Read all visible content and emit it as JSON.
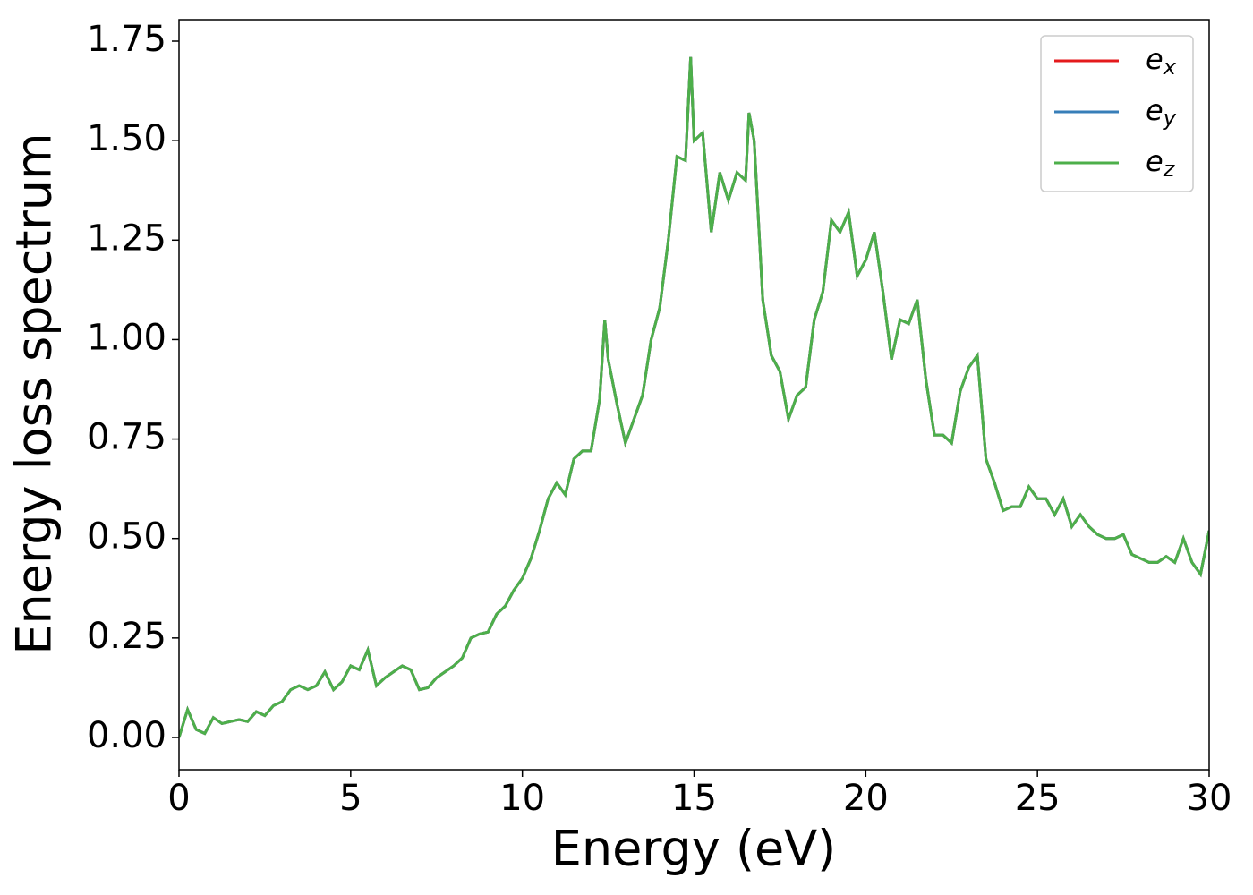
{
  "chart_data": {
    "type": "line",
    "xlabel": "Energy (eV)",
    "ylabel": "Energy loss spectrum",
    "x": [
      0,
      0.25,
      0.5,
      0.75,
      1,
      1.25,
      1.5,
      1.75,
      2,
      2.25,
      2.5,
      2.75,
      3,
      3.25,
      3.5,
      3.75,
      4,
      4.25,
      4.5,
      4.75,
      5,
      5.25,
      5.5,
      5.75,
      6,
      6.25,
      6.5,
      6.75,
      7,
      7.25,
      7.5,
      7.75,
      8,
      8.25,
      8.5,
      8.75,
      9,
      9.25,
      9.5,
      9.75,
      10,
      10.25,
      10.5,
      10.75,
      11,
      11.25,
      11.5,
      11.75,
      12,
      12.25,
      12.4,
      12.5,
      12.75,
      13,
      13.25,
      13.5,
      13.75,
      14,
      14.25,
      14.5,
      14.75,
      14.9,
      15,
      15.25,
      15.5,
      15.75,
      16,
      16.25,
      16.5,
      16.6,
      16.75,
      17,
      17.25,
      17.5,
      17.75,
      18,
      18.25,
      18.5,
      18.75,
      19,
      19.25,
      19.5,
      19.75,
      20,
      20.25,
      20.5,
      20.75,
      21,
      21.25,
      21.5,
      21.75,
      22,
      22.25,
      22.5,
      22.75,
      23,
      23.25,
      23.5,
      23.75,
      24,
      24.25,
      24.5,
      24.75,
      25,
      25.25,
      25.5,
      25.75,
      26,
      26.25,
      26.5,
      26.75,
      27,
      27.25,
      27.5,
      27.75,
      28,
      28.25,
      28.5,
      28.75,
      29,
      29.25,
      29.5,
      29.75,
      30
    ],
    "series": [
      {
        "name": "e_x",
        "color": "#e41a1c",
        "values": [
          0,
          0.07,
          0.02,
          0.01,
          0.05,
          0.035,
          0.04,
          0.045,
          0.04,
          0.065,
          0.055,
          0.08,
          0.09,
          0.12,
          0.13,
          0.12,
          0.13,
          0.165,
          0.12,
          0.14,
          0.18,
          0.17,
          0.22,
          0.13,
          0.15,
          0.165,
          0.18,
          0.17,
          0.12,
          0.125,
          0.15,
          0.165,
          0.18,
          0.2,
          0.25,
          0.26,
          0.265,
          0.31,
          0.33,
          0.37,
          0.4,
          0.45,
          0.52,
          0.6,
          0.64,
          0.61,
          0.7,
          0.72,
          0.72,
          0.85,
          1.05,
          0.95,
          0.84,
          0.74,
          0.8,
          0.86,
          1.0,
          1.08,
          1.25,
          1.46,
          1.45,
          1.71,
          1.5,
          1.52,
          1.27,
          1.42,
          1.35,
          1.42,
          1.4,
          1.57,
          1.5,
          1.1,
          0.96,
          0.92,
          0.8,
          0.86,
          0.88,
          1.05,
          1.12,
          1.3,
          1.27,
          1.32,
          1.16,
          1.2,
          1.27,
          1.12,
          0.95,
          1.05,
          1.04,
          1.1,
          0.9,
          0.76,
          0.76,
          0.74,
          0.87,
          0.93,
          0.96,
          0.7,
          0.64,
          0.57,
          0.58,
          0.58,
          0.63,
          0.6,
          0.6,
          0.56,
          0.6,
          0.53,
          0.56,
          0.53,
          0.51,
          0.5,
          0.5,
          0.51,
          0.46,
          0.45,
          0.44,
          0.44,
          0.455,
          0.44,
          0.5,
          0.44,
          0.41,
          0.52
        ]
      },
      {
        "name": "e_y",
        "color": "#377eb8",
        "values": [
          0,
          0.07,
          0.02,
          0.01,
          0.05,
          0.035,
          0.04,
          0.045,
          0.04,
          0.065,
          0.055,
          0.08,
          0.09,
          0.12,
          0.13,
          0.12,
          0.13,
          0.165,
          0.12,
          0.14,
          0.18,
          0.17,
          0.22,
          0.13,
          0.15,
          0.165,
          0.18,
          0.17,
          0.12,
          0.125,
          0.15,
          0.165,
          0.18,
          0.2,
          0.25,
          0.26,
          0.265,
          0.31,
          0.33,
          0.37,
          0.4,
          0.45,
          0.52,
          0.6,
          0.64,
          0.61,
          0.7,
          0.72,
          0.72,
          0.85,
          1.05,
          0.95,
          0.84,
          0.74,
          0.8,
          0.86,
          1.0,
          1.08,
          1.25,
          1.46,
          1.45,
          1.71,
          1.5,
          1.52,
          1.27,
          1.42,
          1.35,
          1.42,
          1.4,
          1.57,
          1.5,
          1.1,
          0.96,
          0.92,
          0.8,
          0.86,
          0.88,
          1.05,
          1.12,
          1.3,
          1.27,
          1.32,
          1.16,
          1.2,
          1.27,
          1.12,
          0.95,
          1.05,
          1.04,
          1.1,
          0.9,
          0.76,
          0.76,
          0.74,
          0.87,
          0.93,
          0.96,
          0.7,
          0.64,
          0.57,
          0.58,
          0.58,
          0.63,
          0.6,
          0.6,
          0.56,
          0.6,
          0.53,
          0.56,
          0.53,
          0.51,
          0.5,
          0.5,
          0.51,
          0.46,
          0.45,
          0.44,
          0.44,
          0.455,
          0.44,
          0.5,
          0.44,
          0.41,
          0.52
        ]
      },
      {
        "name": "e_z",
        "color": "#4daf4a",
        "values": [
          0,
          0.07,
          0.02,
          0.01,
          0.05,
          0.035,
          0.04,
          0.045,
          0.04,
          0.065,
          0.055,
          0.08,
          0.09,
          0.12,
          0.13,
          0.12,
          0.13,
          0.165,
          0.12,
          0.14,
          0.18,
          0.17,
          0.22,
          0.13,
          0.15,
          0.165,
          0.18,
          0.17,
          0.12,
          0.125,
          0.15,
          0.165,
          0.18,
          0.2,
          0.25,
          0.26,
          0.265,
          0.31,
          0.33,
          0.37,
          0.4,
          0.45,
          0.52,
          0.6,
          0.64,
          0.61,
          0.7,
          0.72,
          0.72,
          0.85,
          1.05,
          0.95,
          0.84,
          0.74,
          0.8,
          0.86,
          1.0,
          1.08,
          1.25,
          1.46,
          1.45,
          1.71,
          1.5,
          1.52,
          1.27,
          1.42,
          1.35,
          1.42,
          1.4,
          1.57,
          1.5,
          1.1,
          0.96,
          0.92,
          0.8,
          0.86,
          0.88,
          1.05,
          1.12,
          1.3,
          1.27,
          1.32,
          1.16,
          1.2,
          1.27,
          1.12,
          0.95,
          1.05,
          1.04,
          1.1,
          0.9,
          0.76,
          0.76,
          0.74,
          0.87,
          0.93,
          0.96,
          0.7,
          0.64,
          0.57,
          0.58,
          0.58,
          0.63,
          0.6,
          0.6,
          0.56,
          0.6,
          0.53,
          0.56,
          0.53,
          0.51,
          0.5,
          0.5,
          0.51,
          0.46,
          0.45,
          0.44,
          0.44,
          0.455,
          0.44,
          0.5,
          0.44,
          0.41,
          0.52
        ]
      }
    ],
    "xlim": [
      0,
      30
    ],
    "xticks": [
      0,
      5,
      10,
      15,
      20,
      25,
      30
    ],
    "ylim": [
      -0.081,
      1.804
    ],
    "yticks": [
      {
        "value": 0,
        "label": "0.00"
      },
      {
        "value": 0.25,
        "label": "0.25"
      },
      {
        "value": 0.5,
        "label": "0.50"
      },
      {
        "value": 0.75,
        "label": "0.75"
      },
      {
        "value": 1.0,
        "label": "1.00"
      },
      {
        "value": 1.25,
        "label": "1.25"
      },
      {
        "value": 1.5,
        "label": "1.50"
      },
      {
        "value": 1.75,
        "label": "1.75"
      }
    ],
    "grid": false,
    "legend": "upper right"
  }
}
